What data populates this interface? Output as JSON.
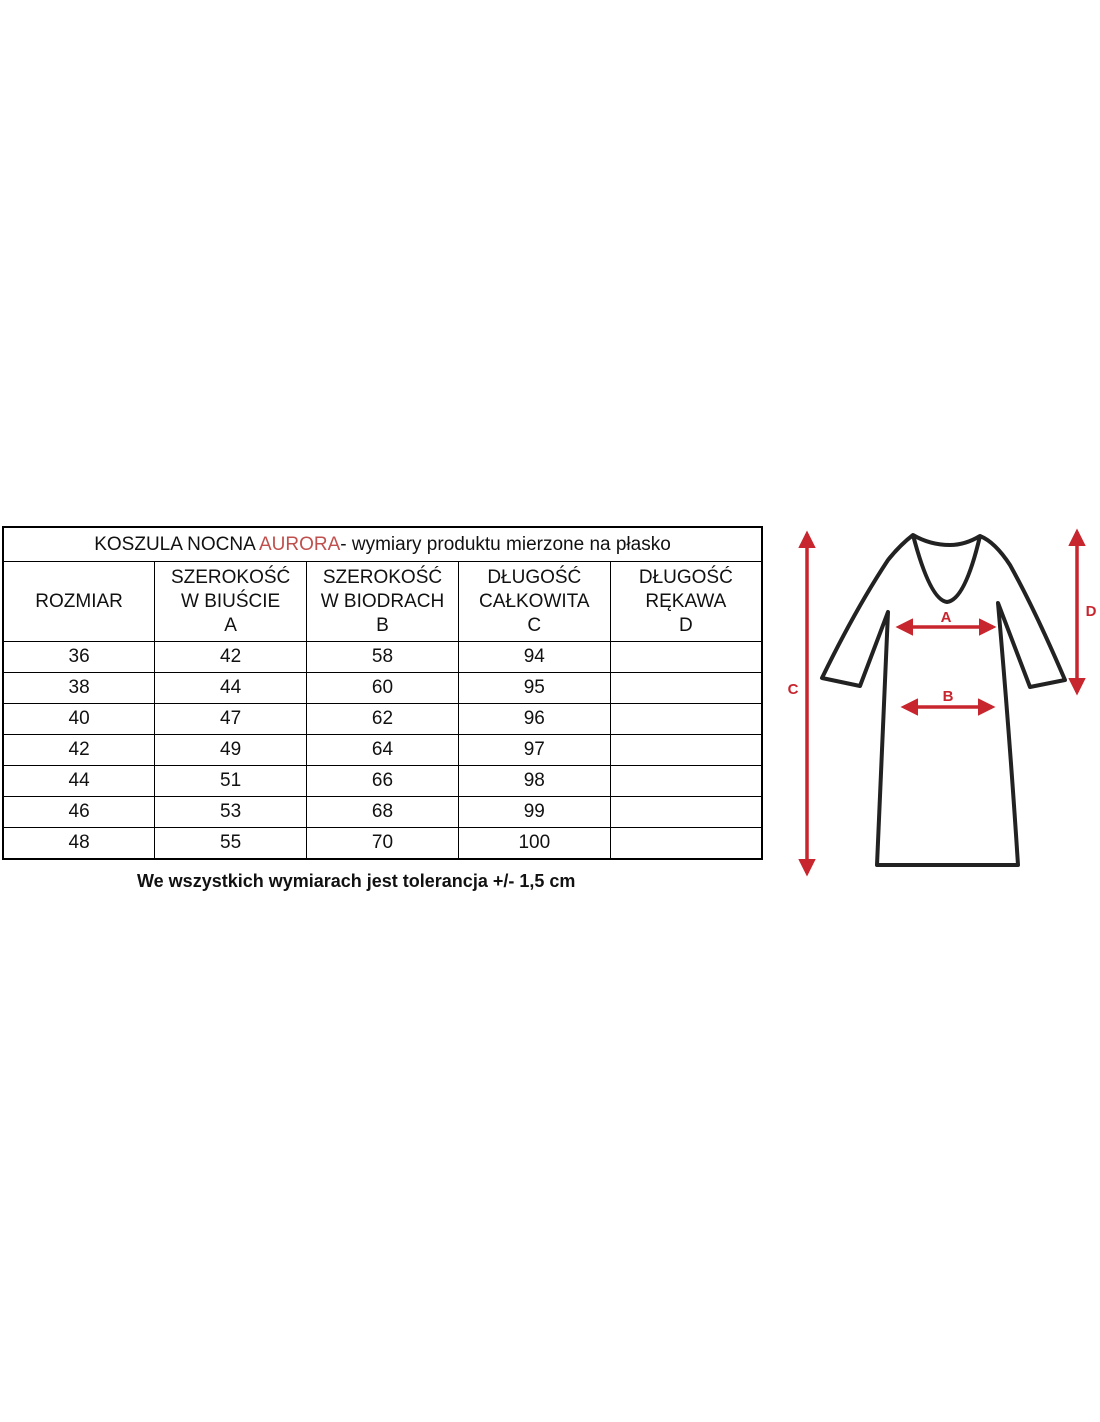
{
  "table": {
    "title_prefix": "KOSZULA NOCNA ",
    "title_accent": "AURORA",
    "title_suffix": "- wymiary produktu mierzone na płasko",
    "accent_color": "#c0504d",
    "headers": [
      {
        "line1": "ROZMIAR",
        "line2": "",
        "line3": ""
      },
      {
        "line1": "SZEROKOŚĆ",
        "line2": "W BIUŚCIE",
        "line3": "A"
      },
      {
        "line1": "SZEROKOŚĆ",
        "line2": "W BIODRACH",
        "line3": "B"
      },
      {
        "line1": "DŁUGOŚĆ",
        "line2": "CAŁKOWITA",
        "line3": "C"
      },
      {
        "line1": "DŁUGOŚĆ",
        "line2": "RĘKAWA",
        "line3": "D"
      }
    ],
    "rows": [
      [
        "36",
        "42",
        "58",
        "94",
        ""
      ],
      [
        "38",
        "44",
        "60",
        "95",
        ""
      ],
      [
        "40",
        "47",
        "62",
        "96",
        ""
      ],
      [
        "42",
        "49",
        "64",
        "97",
        ""
      ],
      [
        "44",
        "51",
        "66",
        "98",
        ""
      ],
      [
        "46",
        "53",
        "68",
        "99",
        ""
      ],
      [
        "48",
        "55",
        "70",
        "100",
        ""
      ]
    ]
  },
  "note": "We wszystkich wymiarach jest tolerancja +/- 1,5 cm",
  "diagram": {
    "labels": {
      "a": "A",
      "b": "B",
      "c": "C",
      "d": "D"
    },
    "arrow_color": "#c8262e"
  }
}
